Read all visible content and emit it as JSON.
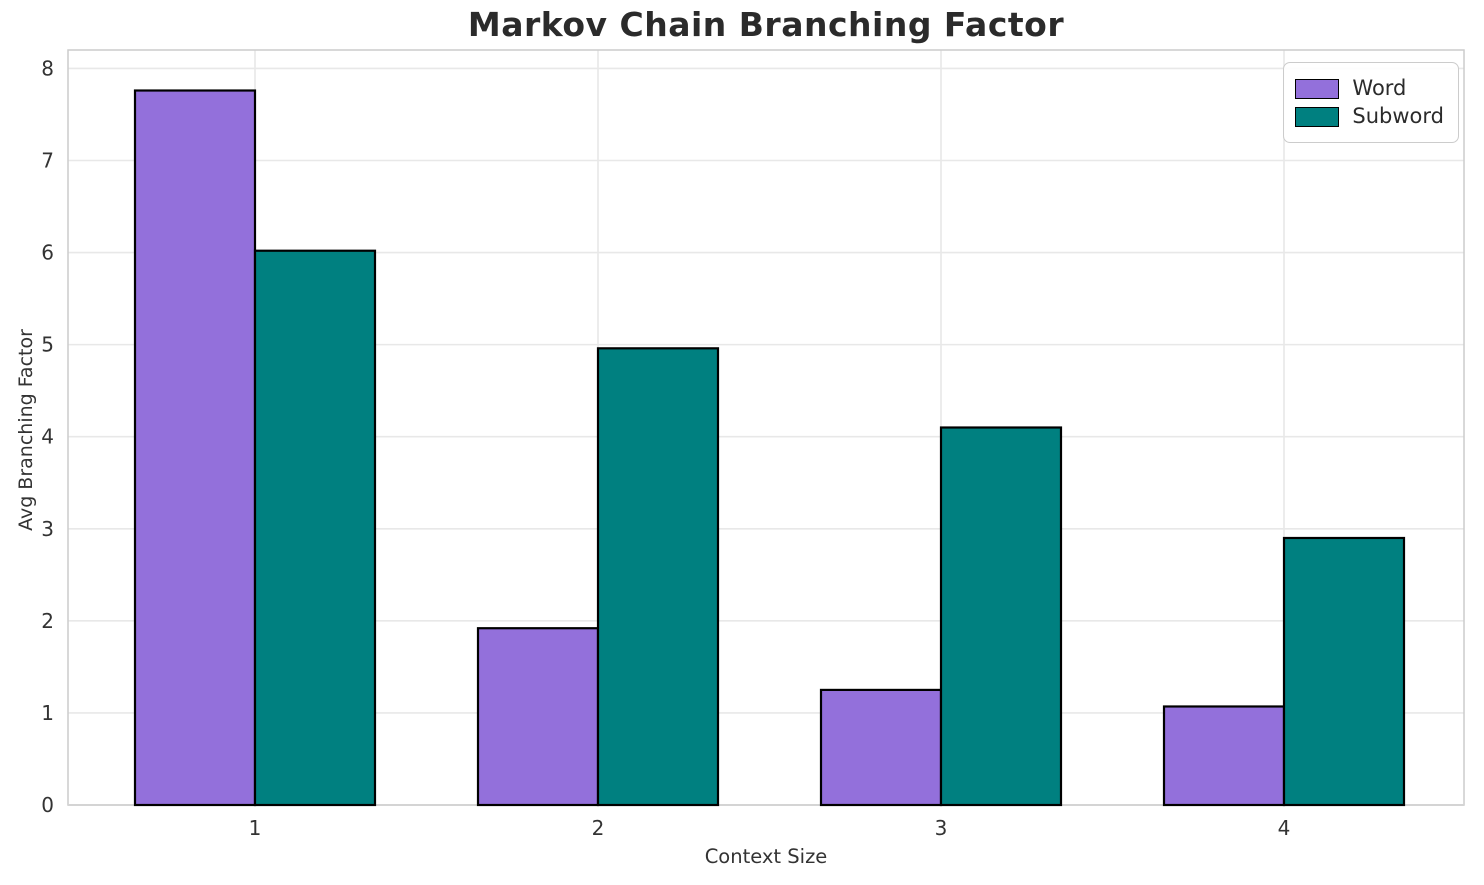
{
  "chart_data": {
    "type": "bar",
    "title": "Markov Chain Branching Factor",
    "xlabel": "Context Size",
    "ylabel": "Avg Branching Factor",
    "categories": [
      "1",
      "2",
      "3",
      "4"
    ],
    "series": [
      {
        "name": "Word",
        "color": "#9370DB",
        "values": [
          7.76,
          1.92,
          1.25,
          1.07
        ]
      },
      {
        "name": "Subword",
        "color": "#008080",
        "values": [
          6.02,
          4.96,
          4.1,
          2.9
        ]
      }
    ],
    "bar_edge_color": "#000000",
    "ylim": [
      0,
      8.2
    ],
    "yticks": [
      0,
      1,
      2,
      3,
      4,
      5,
      6,
      7,
      8
    ],
    "grid": true,
    "legend_position": "upper right"
  },
  "style": {
    "background": "#ffffff",
    "grid_color": "#e8e8e8",
    "spine_color": "#cccccc",
    "bottom_spine_color": "#d4d4d4",
    "tick_text_color": "#333333",
    "title_color": "#2b2b2b"
  }
}
